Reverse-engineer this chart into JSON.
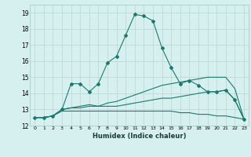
{
  "xlabel": "Humidex (Indice chaleur)",
  "x": [
    0,
    1,
    2,
    3,
    4,
    5,
    6,
    7,
    8,
    9,
    10,
    11,
    12,
    13,
    14,
    15,
    16,
    17,
    18,
    19,
    20,
    21,
    22,
    23
  ],
  "line1": [
    12.5,
    12.5,
    12.6,
    13.0,
    14.6,
    14.6,
    14.1,
    14.6,
    15.9,
    16.3,
    17.6,
    18.9,
    18.8,
    18.5,
    16.8,
    15.6,
    14.6,
    14.8,
    14.5,
    14.1,
    14.1,
    14.2,
    13.6,
    12.4
  ],
  "line2": [
    12.5,
    12.5,
    12.6,
    13.0,
    13.1,
    13.1,
    13.2,
    13.2,
    13.2,
    13.2,
    13.3,
    13.4,
    13.5,
    13.6,
    13.7,
    13.7,
    13.8,
    13.9,
    14.0,
    14.1,
    14.1,
    14.2,
    13.6,
    12.4
  ],
  "line3": [
    12.5,
    12.5,
    12.6,
    12.9,
    12.9,
    12.9,
    12.9,
    12.9,
    12.9,
    12.9,
    12.9,
    12.9,
    12.9,
    12.9,
    12.9,
    12.9,
    12.8,
    12.8,
    12.7,
    12.7,
    12.6,
    12.6,
    12.5,
    12.4
  ],
  "line4": [
    12.5,
    12.5,
    12.6,
    13.0,
    13.1,
    13.2,
    13.3,
    13.2,
    13.4,
    13.5,
    13.7,
    13.9,
    14.1,
    14.3,
    14.5,
    14.6,
    14.7,
    14.8,
    14.9,
    15.0,
    15.0,
    15.0,
    14.3,
    12.4
  ],
  "bg_color": "#d6f0f0",
  "grid_color": "#c0d8d8",
  "line_color": "#1a7a6e",
  "ylim": [
    12,
    19.5
  ],
  "xlim": [
    -0.5,
    23.5
  ],
  "yticks": [
    12,
    13,
    14,
    15,
    16,
    17,
    18,
    19
  ],
  "xticks": [
    0,
    1,
    2,
    3,
    4,
    5,
    6,
    7,
    8,
    9,
    10,
    11,
    12,
    13,
    14,
    15,
    16,
    17,
    18,
    19,
    20,
    21,
    22,
    23
  ]
}
